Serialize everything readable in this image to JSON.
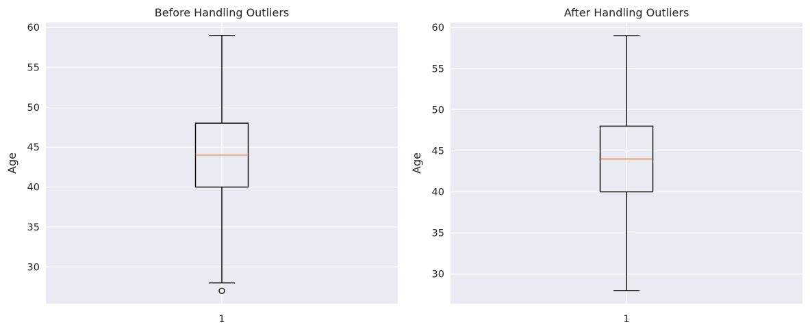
{
  "chart_data": [
    {
      "type": "box",
      "title": "Before Handling Outliers",
      "ylabel": "Age",
      "xlabel": "",
      "ylim": [
        25.4,
        60.6
      ],
      "yticks": [
        30,
        35,
        40,
        45,
        50,
        55,
        60
      ],
      "categories": [
        "1"
      ],
      "grid": true,
      "boxes": [
        {
          "category": "1",
          "whisker_low": 28,
          "q1": 40,
          "median": 44,
          "q3": 48,
          "whisker_high": 59,
          "outliers": [
            27
          ]
        }
      ]
    },
    {
      "type": "box",
      "title": "After Handling Outliers",
      "ylabel": "Age",
      "xlabel": "",
      "ylim": [
        26.4,
        60.6
      ],
      "yticks": [
        30,
        35,
        40,
        45,
        50,
        55,
        60
      ],
      "categories": [
        "1"
      ],
      "grid": true,
      "boxes": [
        {
          "category": "1",
          "whisker_low": 28,
          "q1": 40,
          "median": 44,
          "q3": 48,
          "whisker_high": 59,
          "outliers": []
        }
      ]
    }
  ],
  "colors": {
    "plot_background": "#eaeaf2",
    "grid": "#ffffff",
    "box_line": "#000000",
    "median_line": "#dd8452",
    "text": "#262626"
  }
}
